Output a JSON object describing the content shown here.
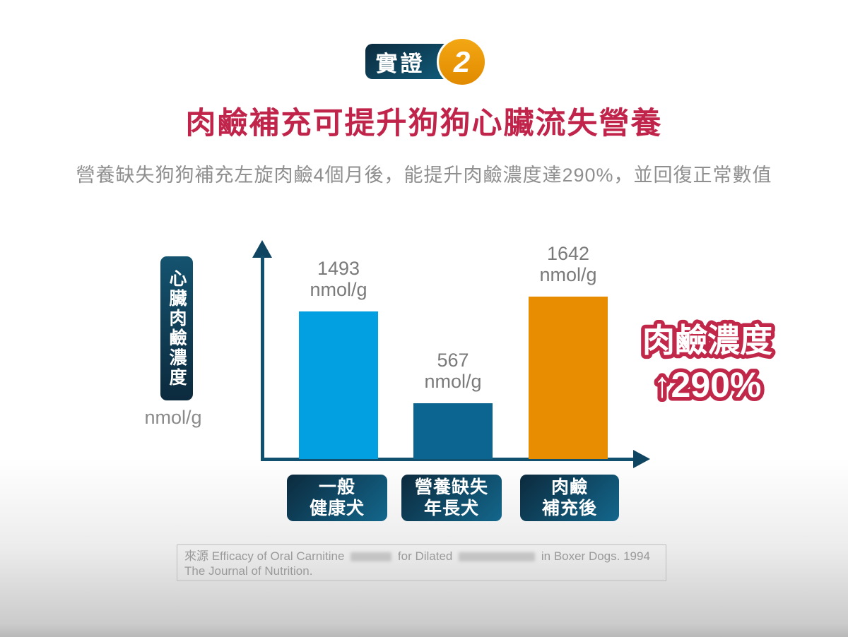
{
  "badge": {
    "label": "實證",
    "number": "2"
  },
  "title": "肉鹼補充可提升狗狗心臟流失營養",
  "subtitle": "營養缺失狗狗補充左旋肉鹼4個月後，能提升肉鹼濃度達290%，並回復正常數值",
  "chart_data": {
    "type": "bar",
    "title": "",
    "ylabel": "心臟肉鹼濃度",
    "ylabel_unit": "nmol/g",
    "value_unit": "nmol/g",
    "categories": [
      "一般健康犬",
      "營養缺失年長犬",
      "肉鹼補充後"
    ],
    "category_lines": [
      [
        "一般",
        "健康犬"
      ],
      [
        "營養缺失",
        "年長犬"
      ],
      [
        "肉鹼",
        "補充後"
      ]
    ],
    "values": [
      1493,
      567,
      1642
    ],
    "bar_colors": [
      "#029fe1",
      "#0c6590",
      "#e88c02"
    ],
    "ylim": [
      0,
      1750
    ],
    "grid": false,
    "legend": "none",
    "annotation": "肉鹼濃度 ↑290%"
  },
  "callout": {
    "line1": "肉鹼濃度",
    "line2": "↑290%"
  },
  "source": {
    "part1": "來源 Efficacy of Oral Carnitine",
    "part2": "for Dilated",
    "part3": "in Boxer Dogs. 1994 The Journal of Nutrition."
  },
  "colors": {
    "accent_red": "#c0244a",
    "dark_teal": "#0c2a3d",
    "teal": "#13678c",
    "axis": "#11506e",
    "orange_badge": "#e99207",
    "bar_light_blue": "#029fe1",
    "bar_dark_teal": "#0c6590",
    "bar_orange": "#e88c02"
  }
}
